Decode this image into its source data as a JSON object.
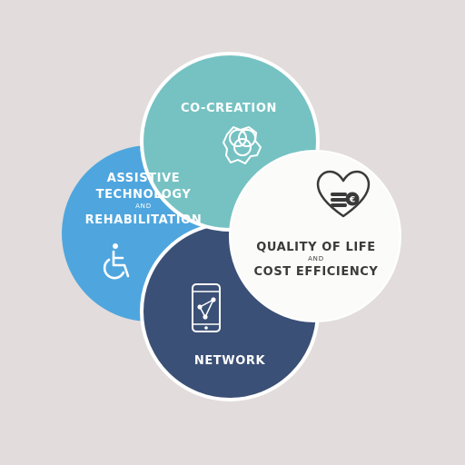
{
  "colors": {
    "background": "#e2dcdc",
    "co_creation": "#76c2c3",
    "assistive": "#4fa6de",
    "quality": "#fbfbfa",
    "network": "#3b5076",
    "dark_text": "#3a3a3a"
  },
  "circles": {
    "co_creation": {
      "label": "CO-CREATION",
      "icon": "venn-puzzle-icon"
    },
    "assistive": {
      "line1": "ASSISTIVE",
      "line2": "TECHNOLOGY",
      "connector": "AND",
      "line3": "REHABILITATION",
      "icon": "wheelchair-icon"
    },
    "quality": {
      "line1": "QUALITY OF LIFE",
      "connector": "AND",
      "line2": "COST EFFICIENCY",
      "icon": "heart-coins-euro-icon"
    },
    "network": {
      "label": "NETWORK",
      "icon": "smartphone-network-icon"
    }
  }
}
